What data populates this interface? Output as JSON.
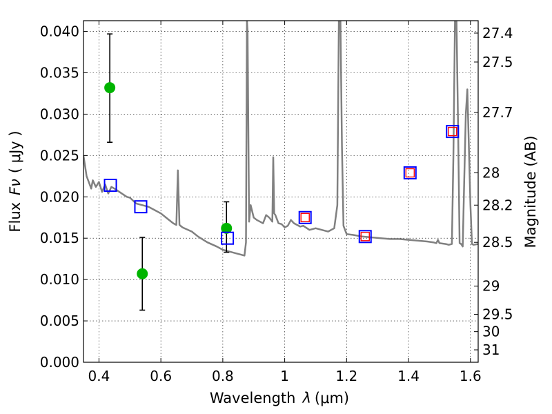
{
  "chart_data": {
    "type": "scatter",
    "title": "",
    "xlabel": "Wavelength",
    "xlabel_symbol": "λ",
    "xlabel_unit": "(μm)",
    "ylabel": "Flux",
    "ylabel_symbol": "Fν",
    "ylabel_unit": "( μJy )",
    "ylabel_right": "Magnitude (AB)",
    "xlim": [
      0.35,
      1.625
    ],
    "ylim": [
      0.0,
      0.0413
    ],
    "grid": true,
    "x_ticks": [
      {
        "value": 0.4,
        "label": "0.4"
      },
      {
        "value": 0.6,
        "label": "0.6"
      },
      {
        "value": 0.8,
        "label": "0.8"
      },
      {
        "value": 1.0,
        "label": "1"
      },
      {
        "value": 1.2,
        "label": "1.2"
      },
      {
        "value": 1.4,
        "label": "1.4"
      },
      {
        "value": 1.6,
        "label": "1.6"
      }
    ],
    "y_ticks": [
      {
        "value": 0.0,
        "label": "0.000"
      },
      {
        "value": 0.005,
        "label": "0.005"
      },
      {
        "value": 0.01,
        "label": "0.010"
      },
      {
        "value": 0.015,
        "label": "0.015"
      },
      {
        "value": 0.02,
        "label": "0.020"
      },
      {
        "value": 0.025,
        "label": "0.025"
      },
      {
        "value": 0.03,
        "label": "0.030"
      },
      {
        "value": 0.035,
        "label": "0.035"
      },
      {
        "value": 0.04,
        "label": "0.040"
      }
    ],
    "mag_ticks": [
      {
        "flux": 0.0398,
        "label": "27.4"
      },
      {
        "flux": 0.0363,
        "label": "27.5"
      },
      {
        "flux": 0.0302,
        "label": "27.7"
      },
      {
        "flux": 0.0229,
        "label": "28"
      },
      {
        "flux": 0.019,
        "label": "28.2"
      },
      {
        "flux": 0.0145,
        "label": "28.5"
      },
      {
        "flux": 0.0092,
        "label": "29"
      },
      {
        "flux": 0.0058,
        "label": "29.5"
      },
      {
        "flux": 0.0037,
        "label": "30"
      },
      {
        "flux": 0.0015,
        "label": "31"
      }
    ],
    "series": [
      {
        "kind": "line",
        "color": "#808080",
        "x": [
          0.35,
          0.36,
          0.37,
          0.375,
          0.38,
          0.39,
          0.4,
          0.41,
          0.42,
          0.43,
          0.44,
          0.45,
          0.47,
          0.49,
          0.5,
          0.52,
          0.54,
          0.56,
          0.58,
          0.6,
          0.62,
          0.64,
          0.65,
          0.655,
          0.66,
          0.67,
          0.7,
          0.72,
          0.75,
          0.78,
          0.8,
          0.82,
          0.84,
          0.86,
          0.87,
          0.875,
          0.878,
          0.88,
          0.885,
          0.89,
          0.9,
          0.91,
          0.92,
          0.93,
          0.94,
          0.95,
          0.96,
          0.963,
          0.966,
          0.97,
          0.98,
          0.99,
          1.0,
          1.01,
          1.02,
          1.03,
          1.04,
          1.05,
          1.06,
          1.08,
          1.1,
          1.12,
          1.14,
          1.16,
          1.17,
          1.175,
          1.18,
          1.185,
          1.19,
          1.2,
          1.22,
          1.25,
          1.28,
          1.31,
          1.34,
          1.37,
          1.4,
          1.43,
          1.46,
          1.48,
          1.49,
          1.495,
          1.5,
          1.52,
          1.53,
          1.54,
          1.545,
          1.55,
          1.555,
          1.56,
          1.565,
          1.57,
          1.575,
          1.58,
          1.585,
          1.59,
          1.6,
          1.605,
          1.61,
          1.625
        ],
        "y": [
          0.025,
          0.0225,
          0.0215,
          0.021,
          0.022,
          0.0212,
          0.0218,
          0.0206,
          0.0215,
          0.0204,
          0.0212,
          0.021,
          0.0205,
          0.02,
          0.0199,
          0.0192,
          0.019,
          0.0188,
          0.0184,
          0.018,
          0.0174,
          0.0168,
          0.0166,
          0.0232,
          0.0166,
          0.0163,
          0.0158,
          0.0152,
          0.0145,
          0.014,
          0.0136,
          0.0134,
          0.0132,
          0.013,
          0.0129,
          0.0145,
          0.0413,
          0.04,
          0.017,
          0.019,
          0.0175,
          0.0172,
          0.017,
          0.0168,
          0.0178,
          0.0175,
          0.017,
          0.0248,
          0.018,
          0.0178,
          0.0168,
          0.0167,
          0.0163,
          0.0165,
          0.0172,
          0.0168,
          0.0166,
          0.0164,
          0.0165,
          0.016,
          0.0162,
          0.016,
          0.0158,
          0.0162,
          0.019,
          0.0413,
          0.0413,
          0.026,
          0.0165,
          0.0155,
          0.0154,
          0.0152,
          0.0151,
          0.015,
          0.0149,
          0.0149,
          0.0148,
          0.0147,
          0.0146,
          0.0145,
          0.0144,
          0.0148,
          0.0144,
          0.0143,
          0.0142,
          0.0143,
          0.025,
          0.0413,
          0.0413,
          0.029,
          0.0144,
          0.0143,
          0.014,
          0.022,
          0.03,
          0.033,
          0.019,
          0.0143,
          0.0142,
          0.0143
        ]
      },
      {
        "kind": "errorbar",
        "color": "#00b400",
        "x": [
          0.435,
          0.54,
          0.812
        ],
        "y": [
          0.0332,
          0.0107,
          0.0162
        ],
        "yerr_low": [
          0.0266,
          0.0063,
          0.0133
        ],
        "yerr_high": [
          0.0397,
          0.0151,
          0.0194
        ]
      },
      {
        "kind": "square",
        "color": "#0000ff",
        "x": [
          0.437,
          0.535,
          0.815,
          1.066,
          1.26,
          1.405,
          1.542
        ],
        "y": [
          0.0214,
          0.0188,
          0.015,
          0.0175,
          0.0152,
          0.0229,
          0.0279
        ]
      },
      {
        "kind": "square",
        "color": "#ff0000",
        "x": [
          1.066,
          1.26,
          1.405,
          1.542
        ],
        "y": [
          0.0175,
          0.0152,
          0.0229,
          0.0279
        ]
      }
    ]
  }
}
